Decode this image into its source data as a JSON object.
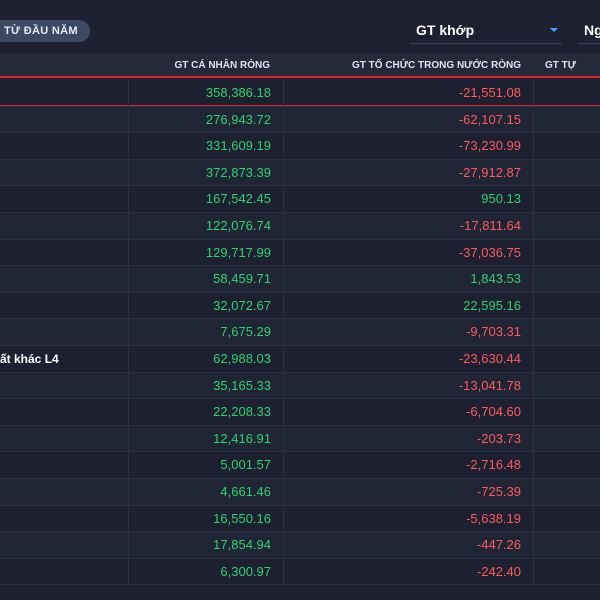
{
  "toolbar": {
    "period_pill": "TỪ ĐẦU NĂM",
    "value_select": "GT khớp",
    "date_select": "Ng"
  },
  "table": {
    "headers": {
      "individual": "GT CÁ NHÂN RÒNG",
      "domestic_institution": "GT TỔ CHỨC TRONG NƯỚC RÒNG",
      "self_trading": "GT TỰ"
    },
    "rows": [
      {
        "name": "",
        "individual": "358,386.18",
        "domestic": "-21,551.08",
        "sign": "neg"
      },
      {
        "name": "",
        "individual": "276,943.72",
        "domestic": "-62,107.15",
        "sign": "neg"
      },
      {
        "name": "",
        "individual": "331,609.19",
        "domestic": "-73,230.99",
        "sign": "neg"
      },
      {
        "name": "",
        "individual": "372,873.39",
        "domestic": "-27,912.87",
        "sign": "neg"
      },
      {
        "name": "",
        "individual": "167,542.45",
        "domestic": "950.13",
        "sign": "pos"
      },
      {
        "name": "",
        "individual": "122,076.74",
        "domestic": "-17,811.64",
        "sign": "neg"
      },
      {
        "name": "",
        "individual": "129,717.99",
        "domestic": "-37,036.75",
        "sign": "neg"
      },
      {
        "name": "",
        "individual": "58,459.71",
        "domestic": "1,843.53",
        "sign": "pos"
      },
      {
        "name": "",
        "individual": "32,072.67",
        "domestic": "22,595.16",
        "sign": "pos"
      },
      {
        "name": "",
        "individual": "7,675.29",
        "domestic": "-9,703.31",
        "sign": "neg"
      },
      {
        "name": "ất khác L4",
        "individual": "62,988.03",
        "domestic": "-23,630.44",
        "sign": "neg"
      },
      {
        "name": "",
        "individual": "35,165.33",
        "domestic": "-13,041.78",
        "sign": "neg"
      },
      {
        "name": "",
        "individual": "22,208.33",
        "domestic": "-6,704.60",
        "sign": "neg"
      },
      {
        "name": "",
        "individual": "12,416.91",
        "domestic": "-203.73",
        "sign": "neg"
      },
      {
        "name": "",
        "individual": "5,001.57",
        "domestic": "-2,716.48",
        "sign": "neg"
      },
      {
        "name": "",
        "individual": "4,661.46",
        "domestic": "-725.39",
        "sign": "neg"
      },
      {
        "name": "",
        "individual": "16,550.16",
        "domestic": "-5,638.19",
        "sign": "neg"
      },
      {
        "name": "",
        "individual": "17,854.94",
        "domestic": "-447.26",
        "sign": "neg"
      },
      {
        "name": "",
        "individual": "6,300.97",
        "domestic": "-242.40",
        "sign": "neg"
      }
    ]
  },
  "colors": {
    "positive": "#2fd26a",
    "negative": "#ff5a5a",
    "highlight_line": "#e0202c"
  }
}
